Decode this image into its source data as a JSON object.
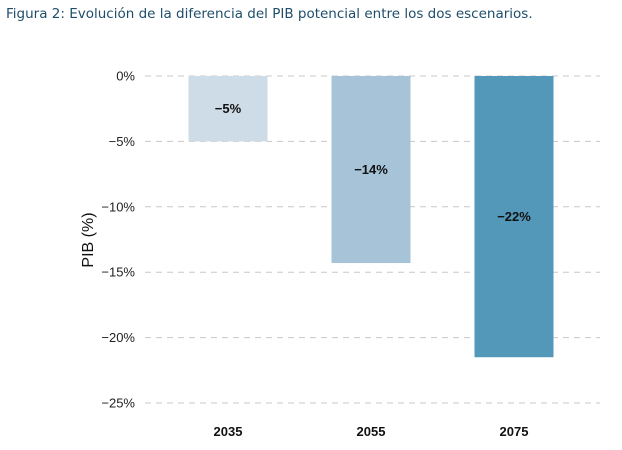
{
  "chart_data": {
    "type": "bar",
    "title": "Figura 2: Evolución de la diferencia del PIB potencial entre los dos escenarios.",
    "xlabel": "",
    "ylabel": "PIB (%)",
    "categories": [
      "2035",
      "2055",
      "2075"
    ],
    "values": [
      -5,
      -14.3,
      -21.5
    ],
    "data_labels": [
      "−5%",
      "−14%",
      "−22%"
    ],
    "colors": [
      "#cddce6",
      "#a6c3d8",
      "#5398b9"
    ],
    "ylim": [
      -25,
      0
    ],
    "yticks": [
      0,
      -5,
      -10,
      -15,
      -20,
      -25
    ],
    "ytick_labels": [
      "0%",
      "−5%",
      "−10%",
      "−15%",
      "−20%",
      "−25%"
    ],
    "grid": true
  }
}
